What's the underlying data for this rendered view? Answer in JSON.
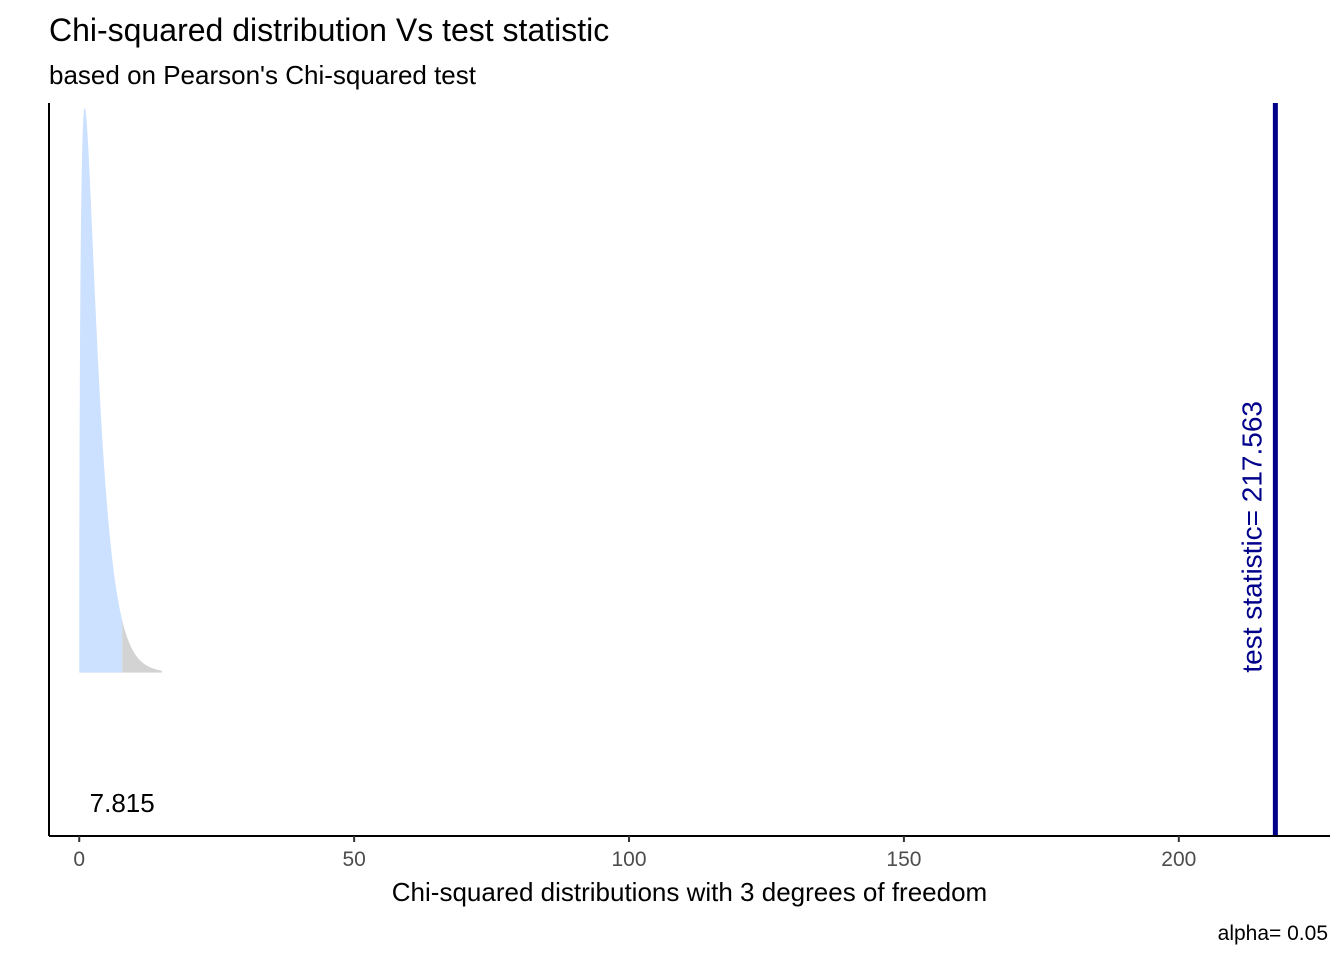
{
  "chart_data": {
    "type": "area",
    "title": "Chi-squared distribution Vs test statistic",
    "subtitle": "based on Pearson's Chi-squared test",
    "xlabel": "Chi-squared distributions with 3 degrees of freedom",
    "ylabel": "",
    "caption": "alpha= 0.05",
    "degrees_of_freedom": 3,
    "alpha": 0.05,
    "critical_value": 7.815,
    "critical_label": "7.815",
    "test_statistic": 217.563,
    "test_statistic_label": "test statistic= 217.563",
    "density_x_range": [
      0,
      15
    ],
    "xlim": [
      -5.5,
      227.5
    ],
    "ylim": [
      -0.07,
      0.244
    ],
    "x_ticks": [
      0,
      50,
      100,
      150,
      200
    ],
    "x_tick_labels": [
      "0",
      "50",
      "100",
      "150",
      "200"
    ],
    "y_axis_ticks": false,
    "grid": false,
    "acceptance_color": "#CCE0FF",
    "rejection_color": "#D3D3D3",
    "statistic_line_color": "#00008B"
  }
}
